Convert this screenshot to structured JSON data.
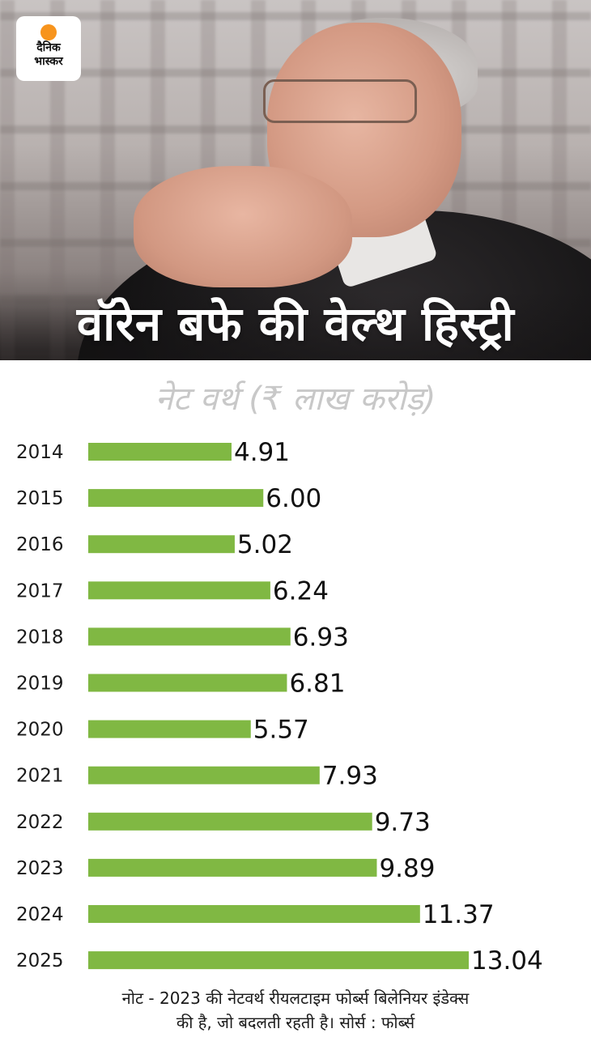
{
  "logo": {
    "line1": "दैनिक",
    "line2": "भास्कर"
  },
  "hero_title": "वॉरेन बफे की वेल्थ हिस्ट्री",
  "colors": {
    "bar": "#80b843",
    "title_text": "#ffffff",
    "subtitle_text": "#c8c8c8",
    "logo_sun": "#f7941d"
  },
  "chart_data": {
    "type": "bar",
    "orientation": "horizontal",
    "title": "नेट वर्थ (₹ लाख करोड़)",
    "categories": [
      "2014",
      "2015",
      "2016",
      "2017",
      "2018",
      "2019",
      "2020",
      "2021",
      "2022",
      "2023",
      "2024",
      "2025"
    ],
    "values": [
      4.91,
      6.0,
      5.02,
      6.24,
      6.93,
      6.81,
      5.57,
      7.93,
      9.73,
      9.89,
      11.37,
      13.04
    ],
    "value_labels": [
      "4.91",
      "6.00",
      "5.02",
      "6.24",
      "6.93",
      "6.81",
      "5.57",
      "7.93",
      "9.73",
      "9.89",
      "11.37",
      "13.04"
    ],
    "xlim": [
      0,
      13.04
    ],
    "grid": false,
    "legend": "none"
  },
  "note": {
    "line1": "नोट - 2023 की नेटवर्थ रीयलटाइम फोर्ब्स बिलेनियर इंडेक्स",
    "line2": "की है, जो बदलती रहती है। सोर्स : फोर्ब्स"
  }
}
